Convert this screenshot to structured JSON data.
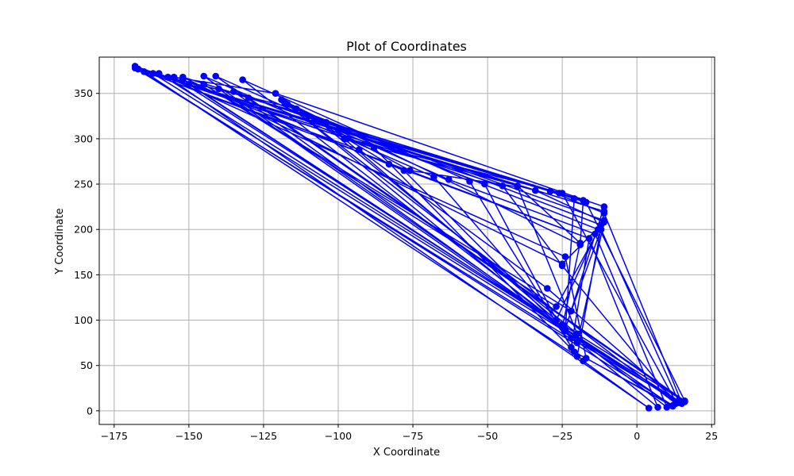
{
  "chart_data": {
    "type": "line",
    "title": "Plot of Coordinates",
    "xlabel": "X Coordinate",
    "ylabel": "Y Coordinate",
    "xlim": [
      -180,
      26
    ],
    "ylim": [
      -15,
      390
    ],
    "x_ticks": [
      -175,
      -150,
      -125,
      -100,
      -75,
      -50,
      -25,
      0,
      25
    ],
    "y_ticks": [
      0,
      50,
      100,
      150,
      200,
      250,
      300,
      350
    ],
    "grid": true,
    "color": "#0000ff",
    "marker": "circle",
    "series": [
      {
        "points": [
          [
            -168,
            380
          ],
          [
            -97,
            300
          ],
          [
            -25,
            240
          ],
          [
            13,
            10
          ],
          [
            -152,
            365
          ],
          [
            -78,
            265
          ],
          [
            -22,
            80
          ],
          [
            15,
            8
          ],
          [
            -155,
            368
          ],
          [
            -121,
            350
          ],
          [
            -11,
            225
          ],
          [
            -24,
            90
          ],
          [
            -145,
            369
          ],
          [
            -68,
            258
          ],
          [
            -25,
            95
          ],
          [
            16,
            10
          ],
          [
            -141,
            369
          ],
          [
            -63,
            255
          ],
          [
            -14,
            195
          ],
          [
            10,
            4
          ],
          [
            -132,
            365
          ],
          [
            -56,
            253
          ],
          [
            -21,
            65
          ],
          [
            12,
            6
          ],
          [
            -167,
            377
          ],
          [
            -100,
            310
          ],
          [
            -11,
            220
          ],
          [
            -20,
            60
          ],
          [
            -165,
            374
          ],
          [
            -93,
            288
          ],
          [
            -30,
            135
          ],
          [
            14,
            9
          ],
          [
            -162,
            372
          ],
          [
            -88,
            290
          ],
          [
            -18,
            55
          ],
          [
            4,
            3
          ],
          [
            -157,
            368
          ],
          [
            -114,
            333
          ],
          [
            -12,
            205
          ],
          [
            -25,
            162
          ],
          [
            -152,
            368
          ],
          [
            -110,
            325
          ],
          [
            -18,
            232
          ],
          [
            -19,
            183
          ],
          [
            -119,
            343
          ],
          [
            -83,
            272
          ],
          [
            -16,
            190
          ],
          [
            7,
            4
          ],
          [
            -117,
            338
          ],
          [
            -76,
            265
          ],
          [
            -40,
            247
          ],
          [
            -20,
            85
          ],
          [
            -106,
            318
          ],
          [
            -51,
            250
          ],
          [
            -22,
            70
          ],
          [
            -16,
            190
          ],
          [
            -167,
            377
          ],
          [
            -45,
            248
          ],
          [
            -25,
            160
          ],
          [
            13,
            8
          ],
          [
            -118,
            340
          ],
          [
            -104,
            318
          ],
          [
            -13,
            200
          ],
          [
            -27,
            100
          ],
          [
            -98,
            300
          ],
          [
            -34,
            243
          ],
          [
            -11,
            208
          ],
          [
            -20,
            75
          ],
          [
            -168,
            378
          ],
          [
            -40,
            248
          ],
          [
            -19,
            185
          ],
          [
            -25,
            92
          ],
          [
            -150,
            360
          ],
          [
            -29,
            242
          ],
          [
            -11,
            218
          ],
          [
            15,
            9
          ],
          [
            -160,
            372
          ],
          [
            -24,
            170
          ],
          [
            -17,
            58
          ],
          [
            12,
            5
          ],
          [
            -140,
            355
          ],
          [
            -26,
            240
          ],
          [
            -21,
            234
          ],
          [
            -24,
            88
          ],
          [
            -135,
            352
          ],
          [
            -108,
            321
          ],
          [
            -17,
            230
          ],
          [
            16,
            11
          ],
          [
            -130,
            345
          ],
          [
            -112,
            328
          ],
          [
            -11,
            210
          ],
          [
            -27,
            115
          ],
          [
            -145,
            360
          ],
          [
            -22,
            110
          ],
          [
            -12,
            200
          ],
          [
            14,
            10
          ]
        ]
      }
    ]
  }
}
